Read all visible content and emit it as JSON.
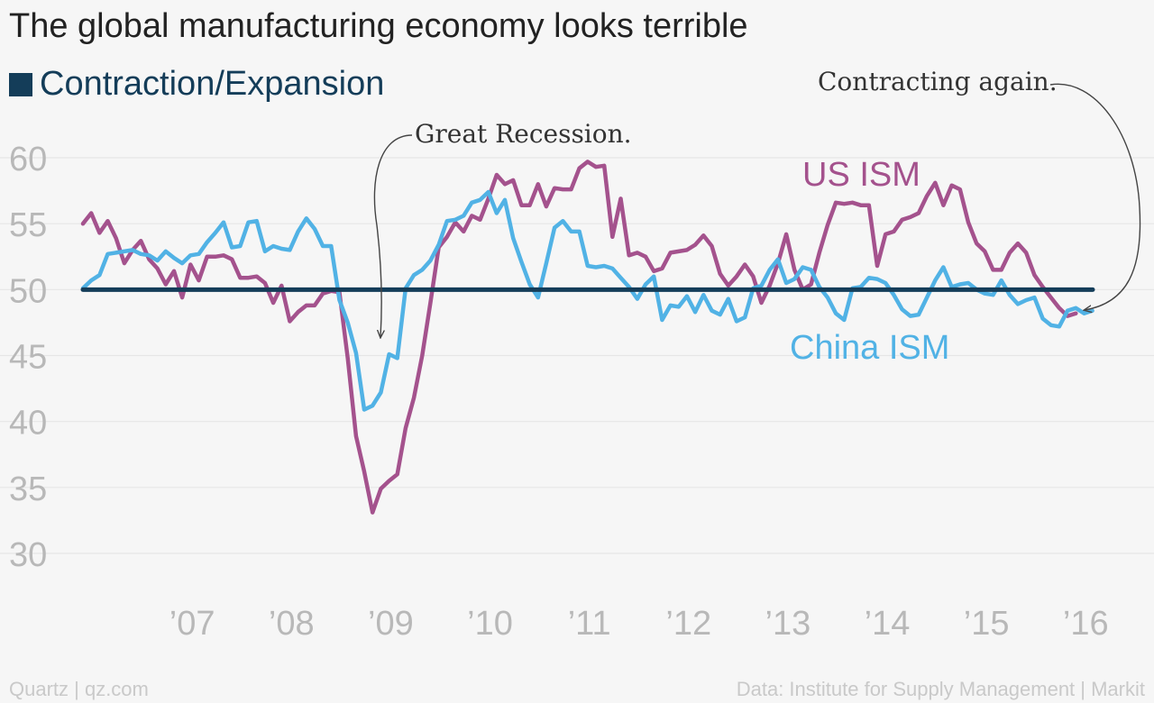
{
  "title": "The global manufacturing economy looks terrible",
  "legend": {
    "label": "Contraction/Expansion",
    "color": "#143d59"
  },
  "footer": {
    "left": "Quartz | qz.com",
    "right": "Data: Institute for Supply Management | Markit"
  },
  "chart_data": {
    "type": "line",
    "title": "The global manufacturing economy looks terrible",
    "ylim": [
      30,
      60
    ],
    "yticks": [
      30,
      35,
      40,
      45,
      50,
      55,
      60
    ],
    "xlim": [
      2006.0,
      2016.17
    ],
    "xticks": [
      {
        "label": "’07",
        "value": 2007
      },
      {
        "label": "’08",
        "value": 2008
      },
      {
        "label": "’09",
        "value": 2009
      },
      {
        "label": "’10",
        "value": 2010
      },
      {
        "label": "’11",
        "value": 2011
      },
      {
        "label": "’12",
        "value": 2012
      },
      {
        "label": "’13",
        "value": 2013
      },
      {
        "label": "’14",
        "value": 2014
      },
      {
        "label": "’15",
        "value": 2015
      },
      {
        "label": "’16",
        "value": 2016
      }
    ],
    "grid": true,
    "reference_line": {
      "name": "Contraction/Expansion",
      "y": 50,
      "color": "#143d59"
    },
    "series": [
      {
        "name": "US ISM",
        "color": "#a4528d",
        "start_year": 2006,
        "values": [
          55.0,
          55.8,
          54.3,
          55.2,
          53.9,
          52.0,
          53.0,
          53.7,
          52.3,
          51.6,
          50.4,
          51.4,
          49.4,
          51.9,
          50.7,
          52.5,
          52.5,
          52.6,
          52.3,
          50.9,
          50.9,
          51.0,
          50.5,
          49.0,
          50.3,
          47.6,
          48.3,
          48.8,
          48.8,
          49.7,
          49.9,
          49.8,
          44.8,
          38.9,
          36.2,
          33.1,
          34.9,
          35.5,
          36.0,
          39.5,
          41.8,
          45.0,
          49.0,
          53.2,
          54.0,
          55.1,
          54.4,
          55.6,
          55.3,
          56.9,
          58.7,
          58.0,
          58.3,
          56.4,
          56.4,
          58.0,
          56.3,
          57.7,
          57.6,
          57.6,
          59.2,
          59.7,
          59.3,
          59.4,
          54.0,
          56.9,
          52.6,
          52.8,
          52.5,
          51.4,
          51.6,
          52.8,
          52.9,
          53.0,
          53.4,
          54.1,
          53.3,
          51.2,
          50.3,
          51.0,
          51.9,
          51.0,
          49.0,
          50.3,
          52.0,
          54.2,
          51.5,
          50.0,
          50.4,
          52.8,
          54.9,
          56.6,
          56.5,
          56.6,
          56.4,
          56.4,
          51.8,
          54.2,
          54.4,
          55.3,
          55.5,
          55.8,
          57.1,
          58.1,
          56.4,
          57.9,
          57.6,
          55.1,
          53.5,
          52.9,
          51.5,
          51.5,
          52.8,
          53.5,
          52.8,
          51.1,
          50.2,
          49.4,
          48.6,
          48.0,
          48.2
        ]
      },
      {
        "name": "China ISM",
        "color": "#51b2e5",
        "start_year": 2006,
        "values": [
          50.1,
          50.7,
          51.1,
          52.7,
          52.8,
          52.9,
          53.0,
          52.7,
          52.6,
          52.2,
          52.9,
          52.4,
          52.0,
          52.6,
          52.7,
          53.6,
          54.3,
          55.1,
          53.2,
          53.3,
          55.1,
          55.2,
          52.9,
          53.3,
          53.1,
          53.0,
          54.4,
          55.4,
          54.6,
          53.3,
          53.3,
          49.2,
          47.5,
          45.2,
          40.9,
          41.2,
          42.2,
          45.1,
          44.8,
          50.1,
          51.1,
          51.5,
          52.2,
          53.4,
          55.2,
          55.3,
          55.6,
          56.6,
          56.8,
          57.4,
          55.8,
          56.8,
          53.9,
          52.1,
          50.4,
          49.4,
          52.0,
          54.7,
          55.2,
          54.4,
          54.4,
          51.8,
          51.7,
          51.8,
          51.6,
          50.9,
          50.2,
          49.3,
          50.4,
          51.0,
          47.7,
          48.8,
          48.7,
          49.5,
          48.3,
          49.6,
          48.4,
          48.1,
          49.3,
          47.6,
          47.9,
          50.1,
          50.3,
          51.5,
          52.3,
          50.5,
          50.8,
          51.7,
          51.5,
          50.2,
          49.4,
          48.2,
          47.7,
          50.1,
          50.2,
          50.9,
          50.8,
          50.5,
          49.6,
          48.5,
          48.0,
          48.1,
          49.4,
          50.7,
          51.7,
          50.2,
          50.4,
          50.5,
          50.0,
          49.7,
          49.6,
          50.7,
          49.6,
          48.9,
          49.2,
          49.4,
          47.8,
          47.3,
          47.2,
          48.4,
          48.6,
          48.2,
          48.4
        ]
      }
    ],
    "series_labels": [
      {
        "text": "US ISM",
        "series": "US ISM"
      },
      {
        "text": "China ISM",
        "series": "China ISM"
      }
    ],
    "annotations": [
      {
        "text": "Great Recession."
      },
      {
        "text": "Contracting again."
      }
    ]
  }
}
